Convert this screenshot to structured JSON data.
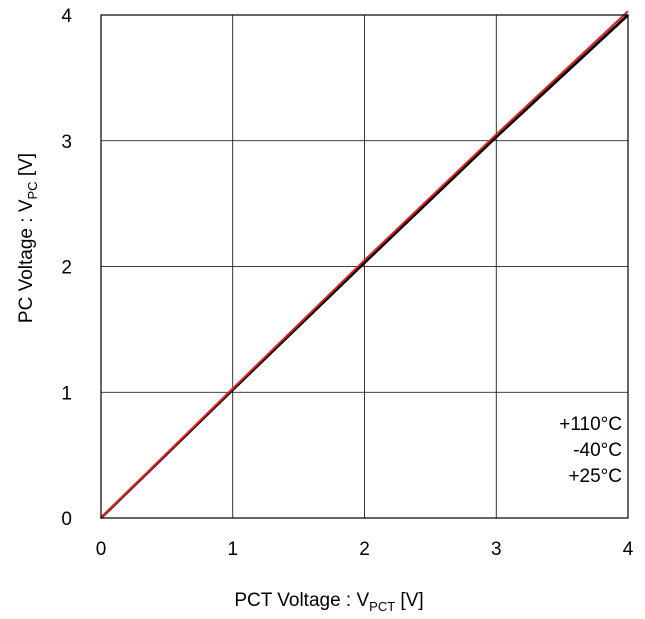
{
  "chart_data": {
    "type": "line",
    "xlabel": {
      "main": "PCT Voltage : V",
      "sub": "PCT",
      "suffix": " [V]"
    },
    "ylabel": {
      "main": "PC Voltage : V",
      "sub": "PC",
      "suffix": " [V]"
    },
    "xlim": [
      0,
      4
    ],
    "ylim": [
      0,
      4
    ],
    "x_ticks": [
      "0",
      "1",
      "2",
      "3",
      "4"
    ],
    "y_ticks": [
      "0",
      "1",
      "2",
      "3",
      "4"
    ],
    "grid": true,
    "legend_placement": "bottom-right",
    "legend_labels": [
      "+110°C",
      "-40°C",
      "+25°C"
    ],
    "series": [
      {
        "name": "+110°C",
        "color": "#1a1aa0",
        "x": [
          0,
          1,
          2,
          3,
          4
        ],
        "y": [
          0,
          1.02,
          2.03,
          3.03,
          4.0
        ]
      },
      {
        "name": "-40°C",
        "color": "#000000",
        "x": [
          0,
          1,
          2,
          3,
          4
        ],
        "y": [
          0,
          1.02,
          2.03,
          3.03,
          4.0
        ]
      },
      {
        "name": "+25°C",
        "color": "#e0201e",
        "x": [
          0,
          1,
          2,
          3,
          4
        ],
        "y": [
          0,
          1.03,
          2.05,
          3.05,
          4.03
        ]
      }
    ]
  }
}
